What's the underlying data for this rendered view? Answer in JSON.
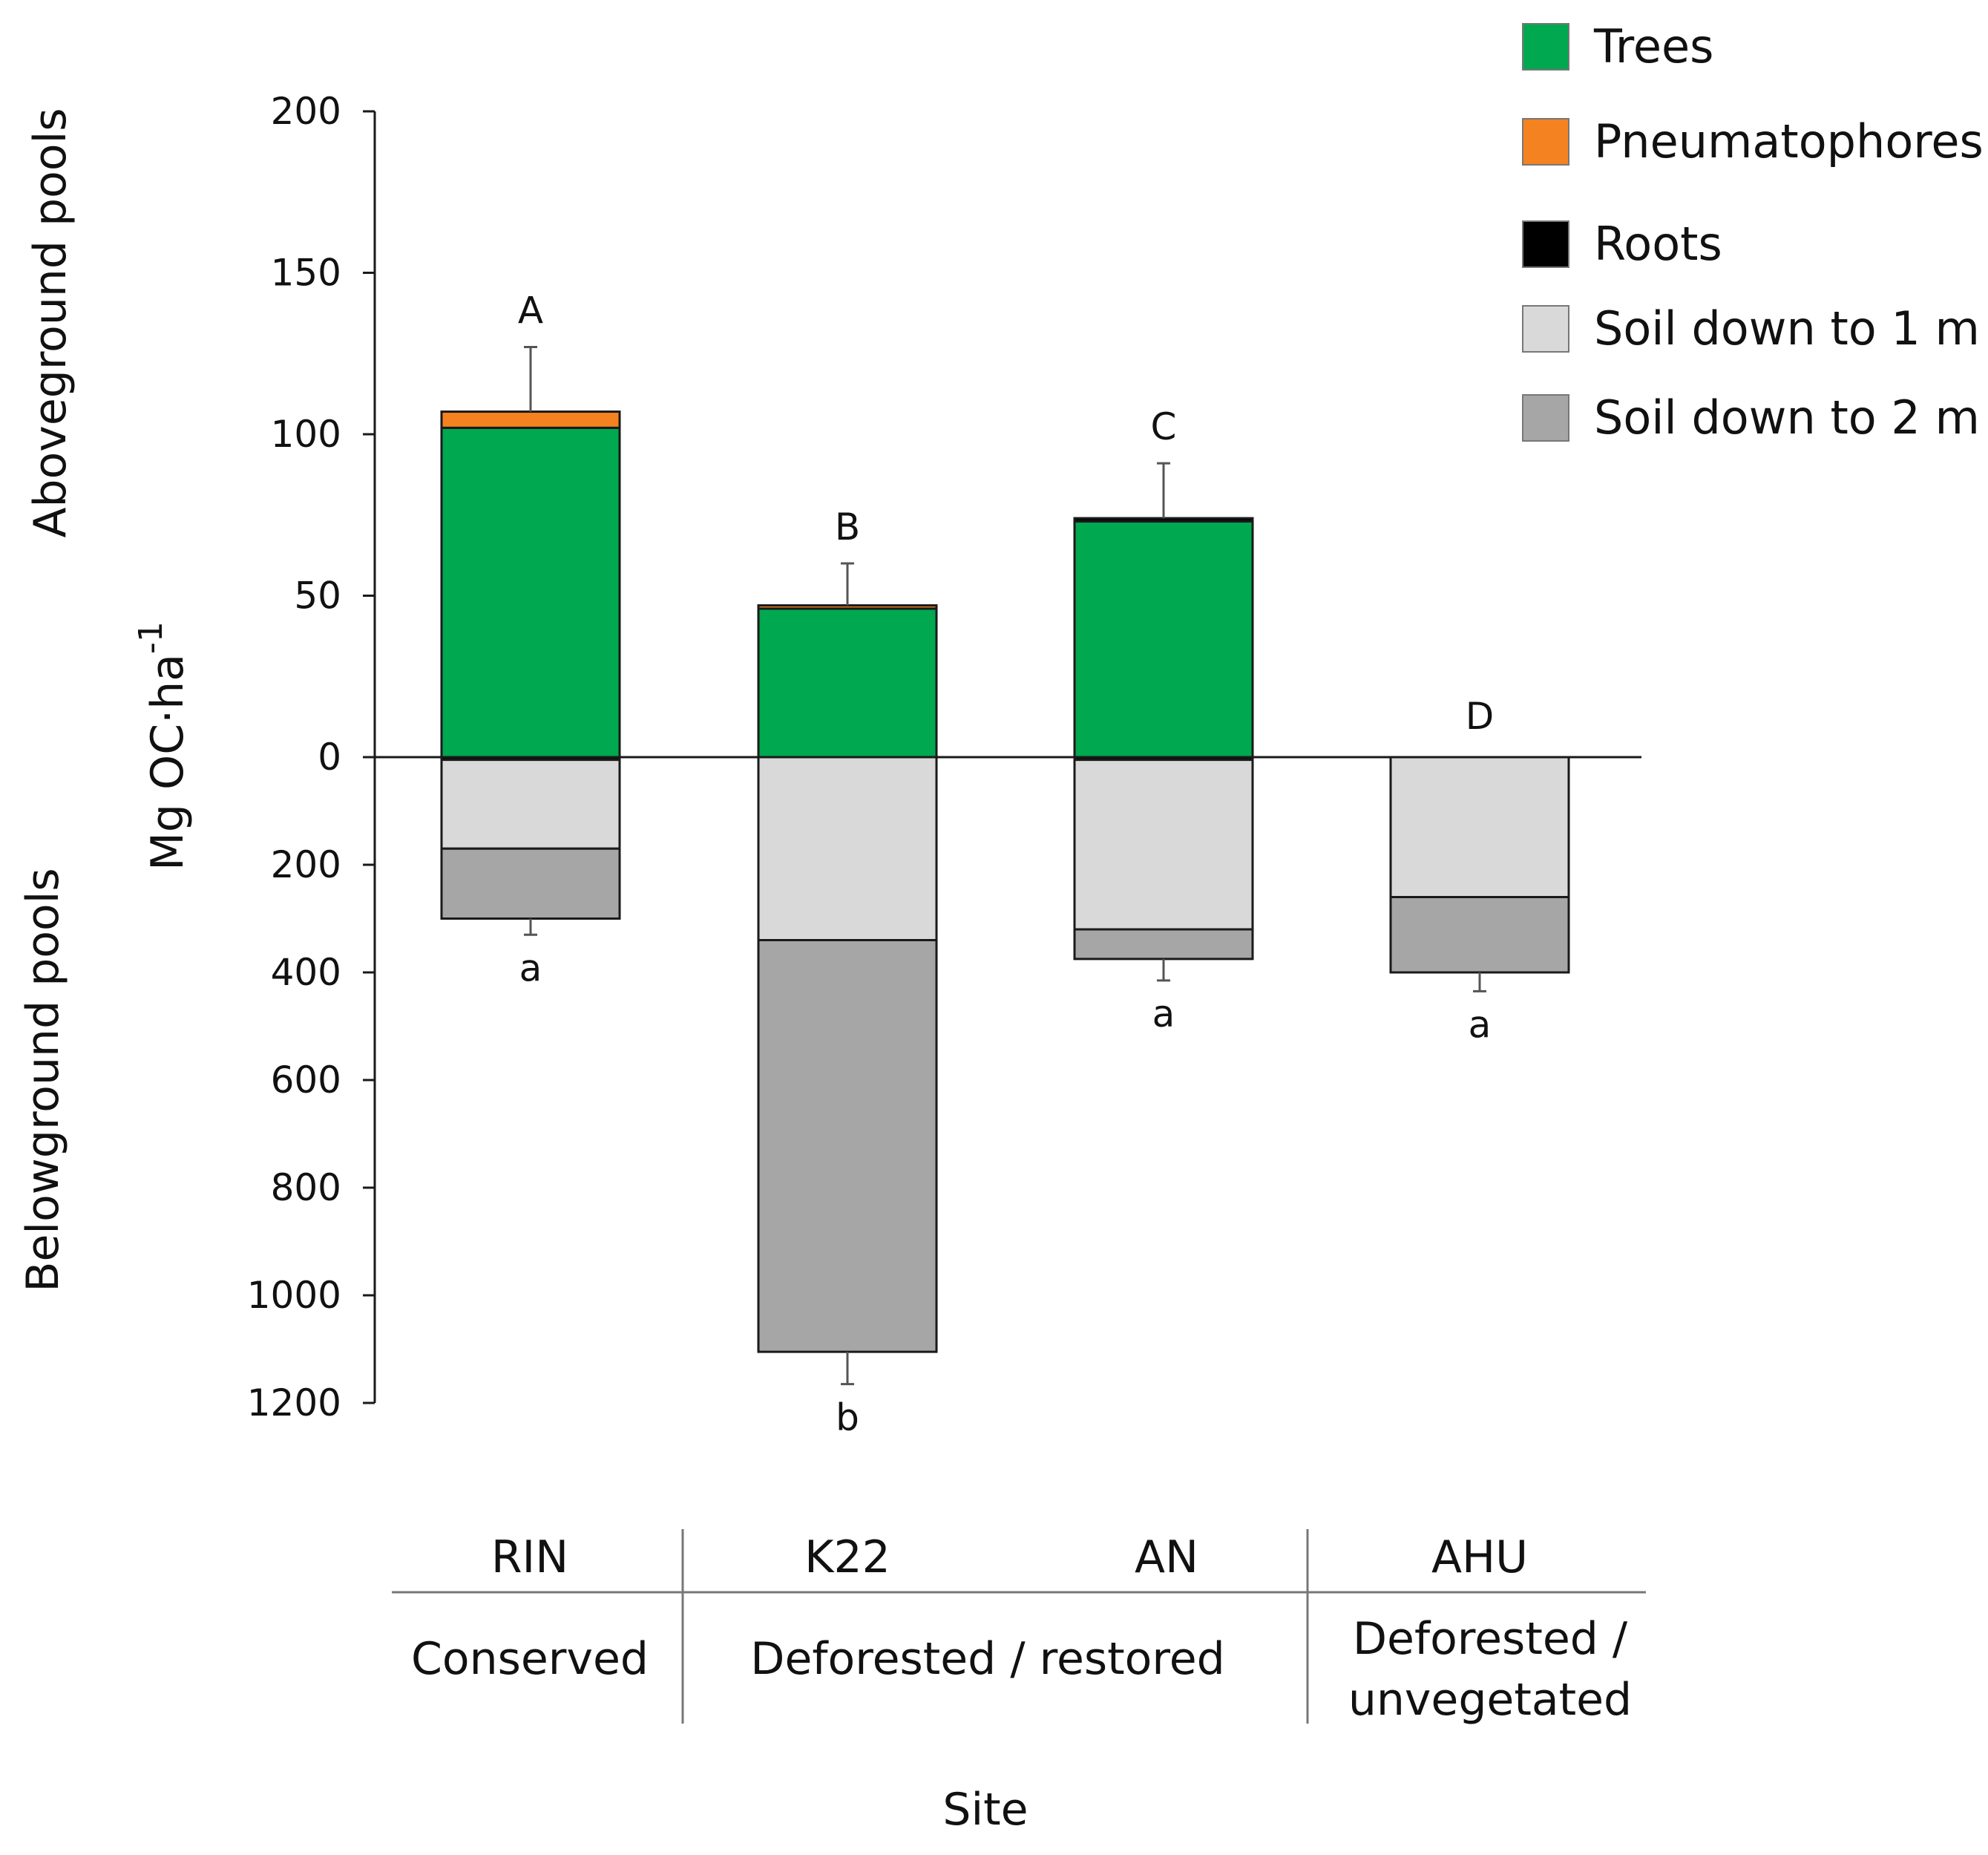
{
  "chart_data": {
    "type": "bar",
    "stacked": true,
    "categories": [
      "RIN",
      "K22",
      "AN",
      "AHU"
    ],
    "groups": [
      "Conserved",
      "Deforested /  restored",
      "Deforested /",
      "unvegetated"
    ],
    "xlabel": "Site",
    "ylabel": "Mg OC·ha",
    "ylabel_exponent": "-1",
    "upper_label": "Aboveground pools",
    "lower_label": "Belowground pools",
    "upper_ylim": [
      0,
      200
    ],
    "lower_ylim": [
      0,
      1200
    ],
    "upper_ticks": [
      "200",
      "150",
      "100",
      "50",
      "0"
    ],
    "lower_ticks": [
      "200",
      "400",
      "600",
      "800",
      "1000",
      "1200"
    ],
    "aboveground_series": [
      {
        "name": "Trees",
        "color": "#00a84f",
        "values": [
          102,
          46,
          73,
          0
        ]
      },
      {
        "name": "Pneumatophores",
        "color": "#f58220",
        "values": [
          5,
          1,
          0,
          0
        ]
      },
      {
        "name": "Roots",
        "color": "#000000",
        "values": [
          0,
          0,
          1,
          0
        ]
      }
    ],
    "belowground_series": [
      {
        "name": "Roots",
        "color": "#000000",
        "values": [
          5,
          0,
          5,
          0
        ]
      },
      {
        "name": "Soil down to 1 m",
        "color": "#d9d9d9",
        "values": [
          165,
          340,
          315,
          260
        ]
      },
      {
        "name": "Soil down to 2 m",
        "color": "#a6a6a6",
        "values": [
          130,
          765,
          55,
          140
        ]
      }
    ],
    "above_errors": [
      20,
      13,
      17,
      null
    ],
    "below_errors": [
      30,
      60,
      40,
      35
    ],
    "above_letters": [
      "A",
      "B",
      "C",
      "D"
    ],
    "below_letters": [
      "a",
      "b",
      "a",
      "a"
    ]
  },
  "legend": [
    {
      "label": "Trees",
      "color": "#00a84f"
    },
    {
      "label": "Pneumatophores",
      "color": "#f58220"
    },
    {
      "label": "Roots",
      "color": "#000000"
    },
    {
      "label": "Soil down to 1 m",
      "color": "#d9d9d9"
    },
    {
      "label": "Soil down to 2 m",
      "color": "#a6a6a6"
    }
  ]
}
